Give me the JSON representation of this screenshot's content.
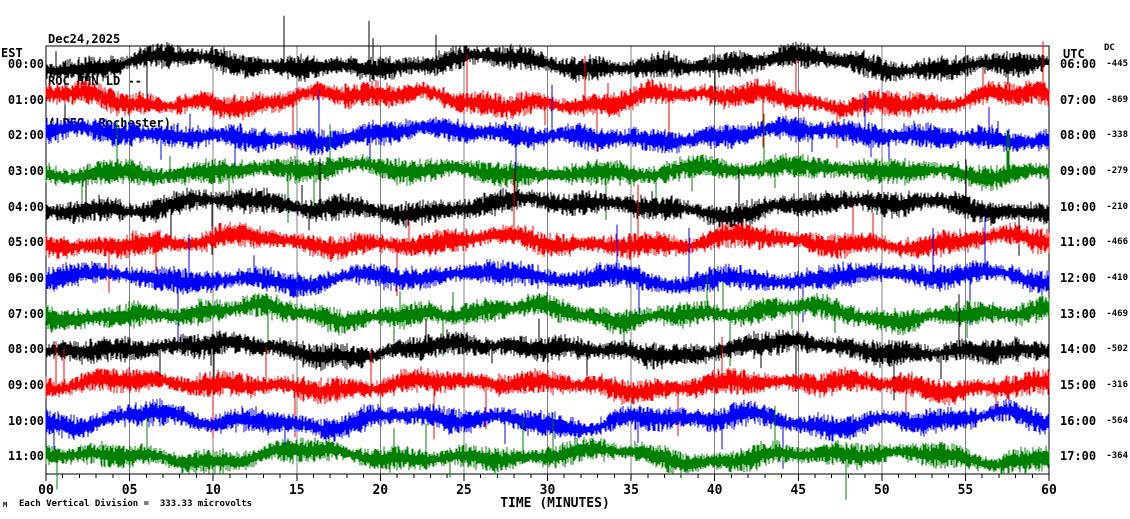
{
  "header": {
    "date": "Dec24,2025",
    "station": "ROC HHN LD --",
    "location": "(LDEO, Rochester)"
  },
  "left_axis": {
    "label": "EST"
  },
  "right_axis": {
    "label": "UTC"
  },
  "dc_column": {
    "label": "DC"
  },
  "x_axis": {
    "label": "TIME (MINUTES)",
    "tick_labels": [
      "00",
      "05",
      "10",
      "15",
      "20",
      "25",
      "30",
      "35",
      "40",
      "45",
      "50",
      "55",
      "60"
    ],
    "minutes_per_major_tick": 5,
    "minutes_per_minor_tick": 1
  },
  "footer": {
    "scale_note": "Each Vertical Division =  333.33 microvolts",
    "corner_mark": "M"
  },
  "colors": {
    "trace_cycle": [
      "#000000",
      "#ff0000",
      "#0000ff",
      "#008000"
    ],
    "gridline": "#808080",
    "border": "#000000",
    "background": "#ffffff"
  },
  "chart_data": {
    "type": "line",
    "subtype": "seismogram-helicorder",
    "title": "ROC HHN LD -- (LDEO, Rochester) Dec24,2025",
    "xlabel": "TIME (MINUTES)",
    "x_range": [
      0,
      60
    ],
    "rows_per_screen": 12,
    "minutes_per_row": 60,
    "amplitude_scale": "Each Vertical Division = 333.33 microvolts",
    "rows": [
      {
        "est": "00:00",
        "utc": "06:00",
        "dc": "-445",
        "color": "#000000"
      },
      {
        "est": "01:00",
        "utc": "07:00",
        "dc": "-869",
        "color": "#ff0000"
      },
      {
        "est": "02:00",
        "utc": "08:00",
        "dc": "-338",
        "color": "#0000ff"
      },
      {
        "est": "03:00",
        "utc": "09:00",
        "dc": "-279",
        "color": "#008000"
      },
      {
        "est": "04:00",
        "utc": "10:00",
        "dc": "-210",
        "color": "#000000"
      },
      {
        "est": "05:00",
        "utc": "11:00",
        "dc": "-466",
        "color": "#ff0000"
      },
      {
        "est": "06:00",
        "utc": "12:00",
        "dc": "-410",
        "color": "#0000ff"
      },
      {
        "est": "07:00",
        "utc": "13:00",
        "dc": "-469",
        "color": "#008000"
      },
      {
        "est": "08:00",
        "utc": "14:00",
        "dc": "-502",
        "color": "#000000"
      },
      {
        "est": "09:00",
        "utc": "15:00",
        "dc": "-316",
        "color": "#ff0000"
      },
      {
        "est": "10:00",
        "utc": "16:00",
        "dc": "-564",
        "color": "#0000ff"
      },
      {
        "est": "11:00",
        "utc": "17:00",
        "dc": "-364",
        "color": "#008000"
      }
    ]
  }
}
